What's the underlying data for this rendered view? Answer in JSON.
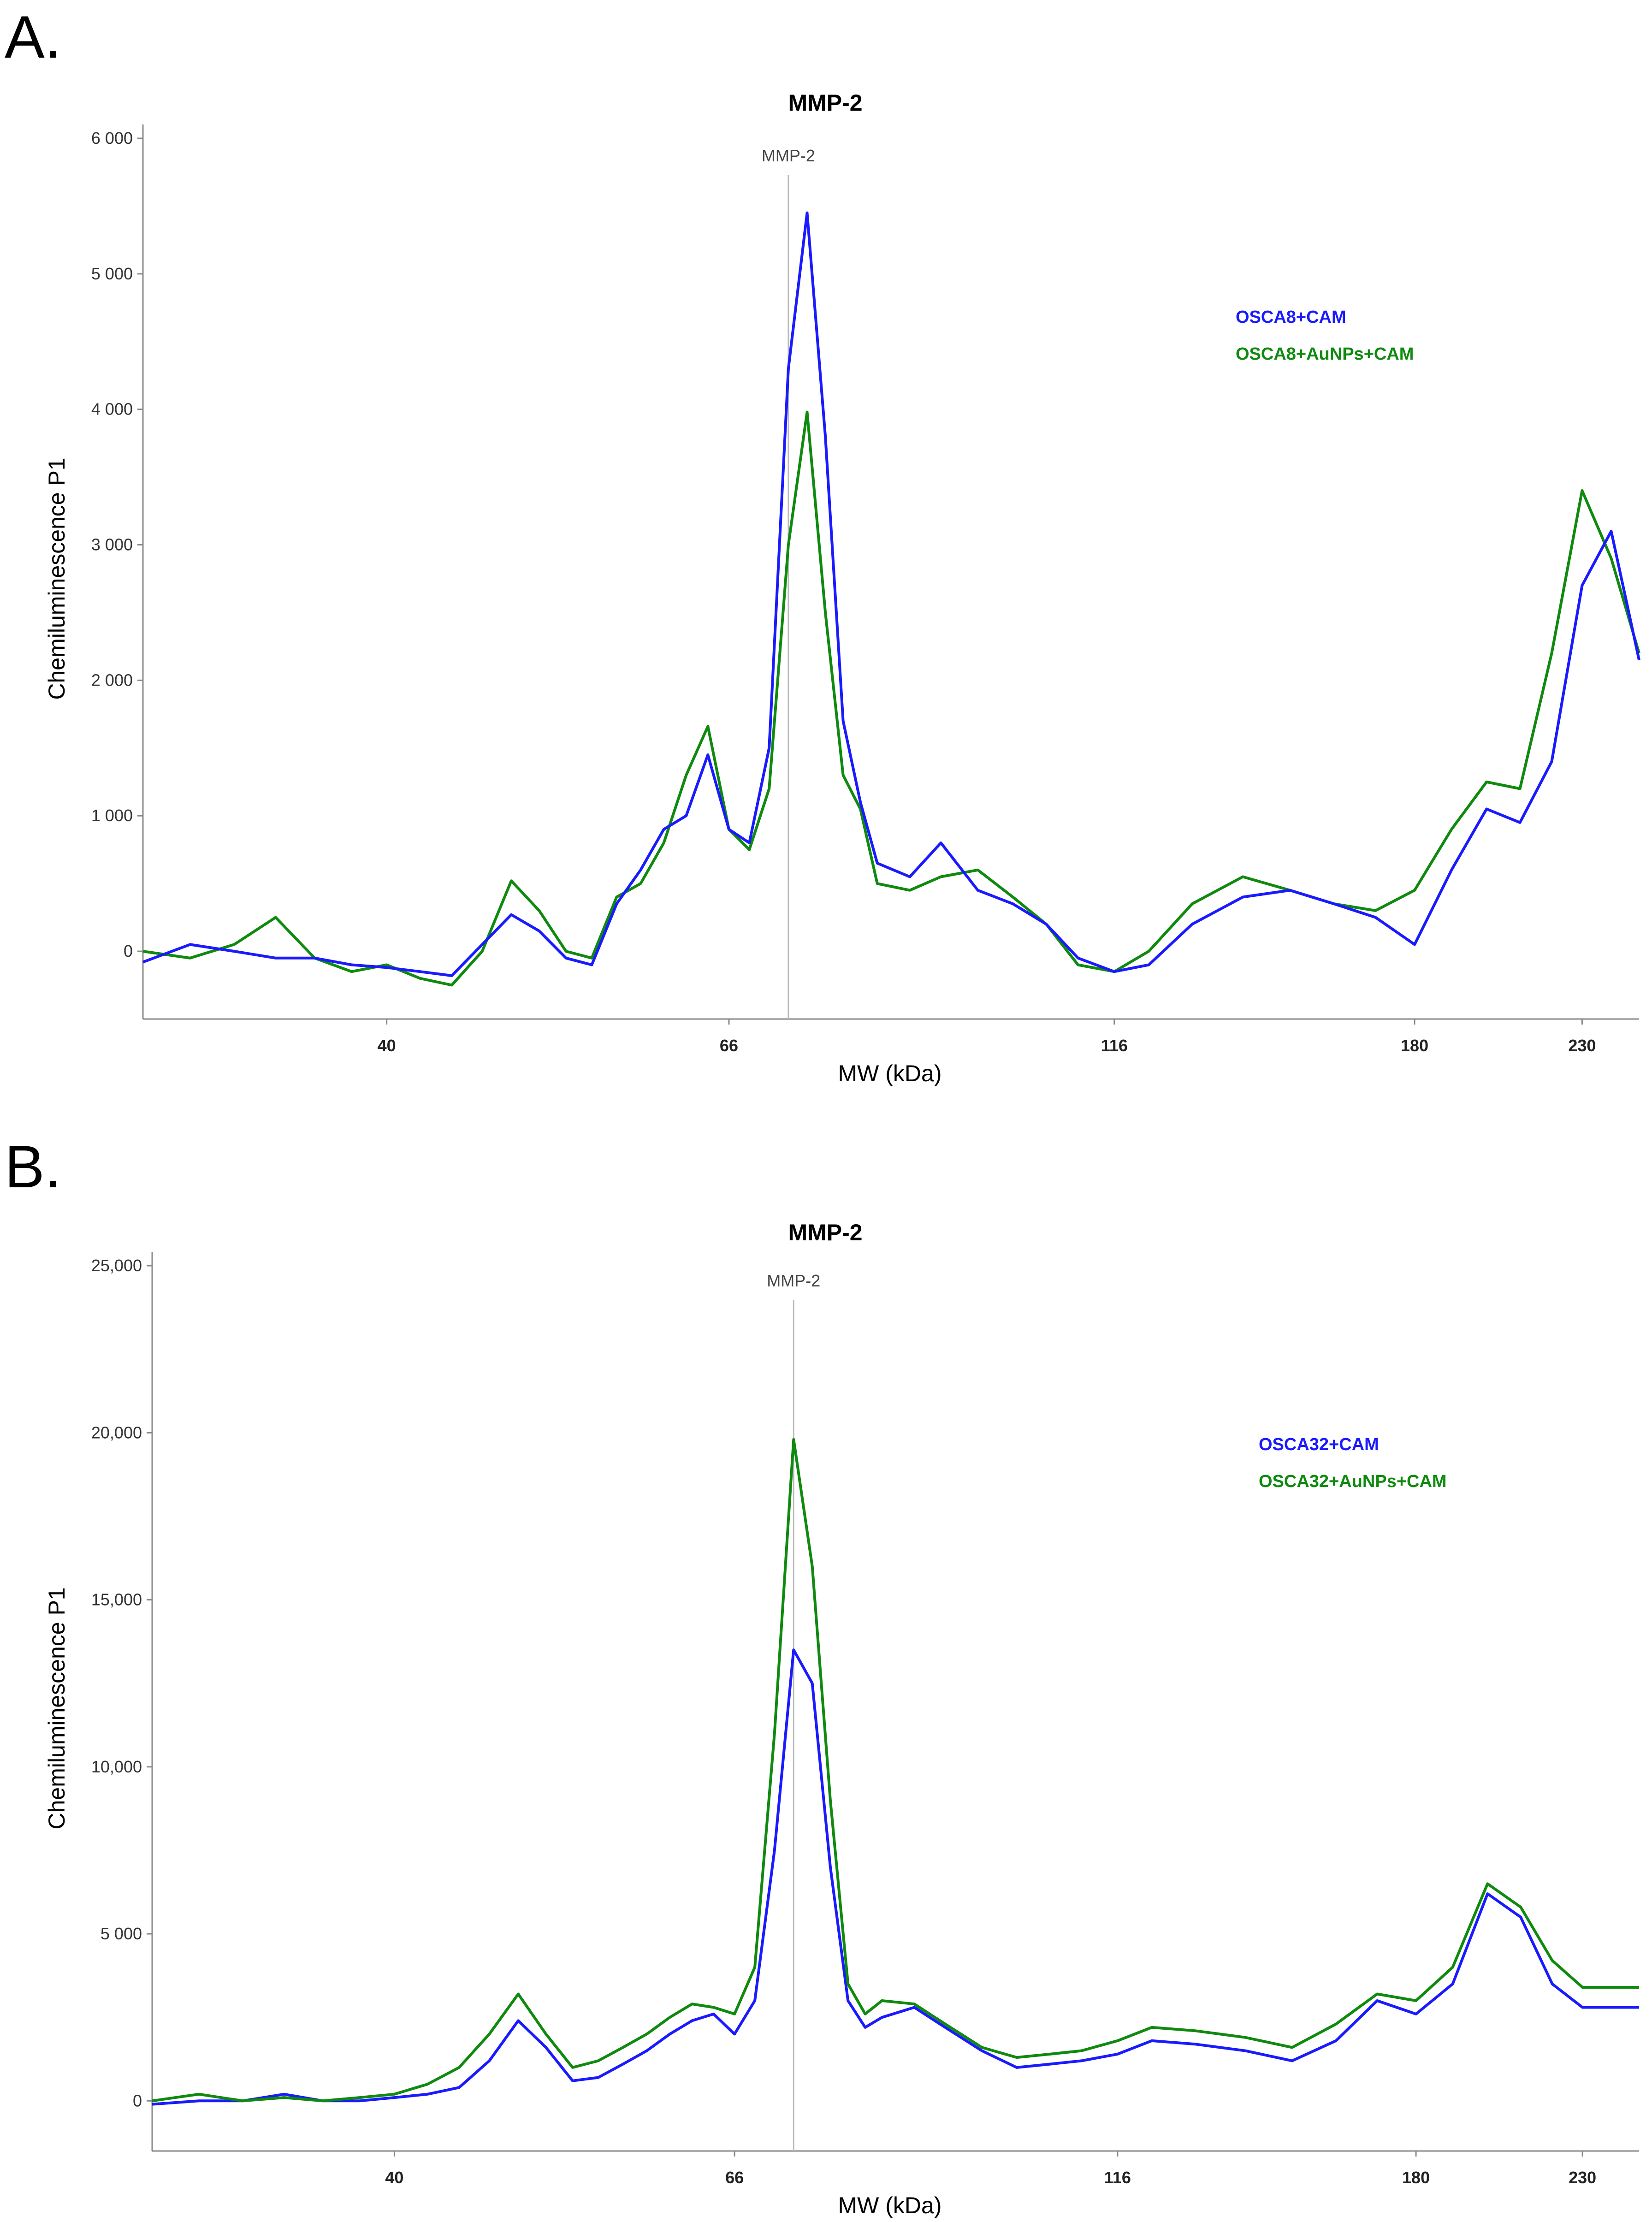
{
  "panels": [
    "A.",
    "B."
  ],
  "chart_data": [
    {
      "type": "line",
      "panel": "A.",
      "title": "MMP-2",
      "xlabel": "MW (kDa)",
      "ylabel": "Chemiluminescence P1",
      "xscale": "log",
      "xlim": [
        28,
        250
      ],
      "ylim": [
        -500,
        6000
      ],
      "x_ticks": [
        40,
        66,
        116,
        180,
        230
      ],
      "x_tick_labels": [
        "40",
        "66",
        "116",
        "180",
        "230"
      ],
      "y_ticks": [
        0,
        1000,
        2000,
        3000,
        4000,
        5000,
        6000
      ],
      "y_tick_labels": [
        "0",
        "1 000",
        "2 000",
        "3 000",
        "4 000",
        "5 000",
        "6 000"
      ],
      "marker": {
        "label": "MMP-2",
        "x": 72
      },
      "grid": false,
      "legend": "top-right",
      "series": [
        {
          "name": "OSCA8+CAM",
          "color": "#1a1aff",
          "x": [
            28,
            30,
            32,
            34,
            36,
            38,
            40,
            42,
            44,
            46,
            48,
            50,
            52,
            54,
            56,
            58,
            60,
            62,
            64,
            66,
            68,
            70,
            72,
            74,
            76,
            78,
            80,
            82,
            86,
            90,
            95,
            100,
            105,
            110,
            116,
            122,
            130,
            140,
            150,
            160,
            170,
            180,
            190,
            200,
            210,
            220,
            230,
            240,
            250
          ],
          "values": [
            -80,
            50,
            0,
            -50,
            -50,
            -100,
            -120,
            -150,
            -180,
            50,
            270,
            150,
            -50,
            -100,
            350,
            600,
            900,
            1000,
            1450,
            900,
            800,
            1500,
            4300,
            5450,
            3800,
            1700,
            1100,
            650,
            550,
            800,
            450,
            350,
            200,
            -50,
            -150,
            -100,
            200,
            400,
            450,
            350,
            250,
            50,
            600,
            1050,
            950,
            1400,
            2700,
            3100,
            2150
          ]
        },
        {
          "name": "OSCA8+AuNPs+CAM",
          "color": "#0f8a0f",
          "x": [
            28,
            30,
            32,
            34,
            36,
            38,
            40,
            42,
            44,
            46,
            48,
            50,
            52,
            54,
            56,
            58,
            60,
            62,
            64,
            66,
            68,
            70,
            72,
            74,
            76,
            78,
            80,
            82,
            86,
            90,
            95,
            100,
            105,
            110,
            116,
            122,
            130,
            140,
            150,
            160,
            170,
            180,
            190,
            200,
            210,
            220,
            230,
            240,
            250
          ],
          "values": [
            0,
            -50,
            50,
            250,
            -50,
            -150,
            -100,
            -200,
            -250,
            0,
            520,
            300,
            0,
            -50,
            400,
            500,
            800,
            1300,
            1660,
            900,
            750,
            1200,
            3000,
            3980,
            2500,
            1300,
            1050,
            500,
            450,
            550,
            600,
            400,
            200,
            -100,
            -150,
            0,
            350,
            550,
            450,
            350,
            300,
            450,
            900,
            1250,
            1200,
            2200,
            3400,
            2900,
            2200
          ]
        }
      ]
    },
    {
      "type": "line",
      "panel": "B.",
      "title": "MMP-2",
      "xlabel": "MW (kDa)",
      "ylabel": "Chemiluminescence P1",
      "xscale": "log",
      "xlim": [
        28,
        250
      ],
      "ylim": [
        -1500,
        25000
      ],
      "x_ticks": [
        40,
        66,
        116,
        180,
        230
      ],
      "x_tick_labels": [
        "40",
        "66",
        "116",
        "180",
        "230"
      ],
      "y_ticks": [
        0,
        5000,
        10000,
        15000,
        20000,
        25000
      ],
      "y_tick_labels": [
        "0",
        "5 000",
        "10,000",
        "15,000",
        "20,000",
        "25,000"
      ],
      "marker": {
        "label": "MMP-2",
        "x": 72
      },
      "grid": false,
      "legend": "top-right",
      "series": [
        {
          "name": "OSCA32+CAM",
          "color": "#1a1aff",
          "x": [
            28,
            30,
            32,
            34,
            36,
            38,
            40,
            42,
            44,
            46,
            48,
            50,
            52,
            54,
            56,
            58,
            60,
            62,
            64,
            66,
            68,
            70,
            72,
            74,
            76,
            78,
            80,
            82,
            86,
            90,
            95,
            100,
            105,
            110,
            116,
            122,
            130,
            140,
            150,
            160,
            170,
            180,
            190,
            200,
            210,
            220,
            230,
            240,
            250
          ],
          "values": [
            -100,
            0,
            0,
            200,
            0,
            0,
            100,
            200,
            400,
            1200,
            2400,
            1600,
            600,
            700,
            1100,
            1500,
            2000,
            2400,
            2600,
            2000,
            3000,
            7500,
            13500,
            12500,
            7000,
            3000,
            2200,
            2500,
            2800,
            2200,
            1500,
            1000,
            1100,
            1200,
            1400,
            1800,
            1700,
            1500,
            1200,
            1800,
            3000,
            2600,
            3500,
            6200,
            5500,
            3500,
            2800,
            2800,
            2800
          ]
        },
        {
          "name": "OSCA32+AuNPs+CAM",
          "color": "#0f8a0f",
          "x": [
            28,
            30,
            32,
            34,
            36,
            38,
            40,
            42,
            44,
            46,
            48,
            50,
            52,
            54,
            56,
            58,
            60,
            62,
            64,
            66,
            68,
            70,
            72,
            74,
            76,
            78,
            80,
            82,
            86,
            90,
            95,
            100,
            105,
            110,
            116,
            122,
            130,
            140,
            150,
            160,
            170,
            180,
            190,
            200,
            210,
            220,
            230,
            240,
            250
          ],
          "values": [
            0,
            200,
            0,
            100,
            0,
            100,
            200,
            500,
            1000,
            2000,
            3200,
            2000,
            1000,
            1200,
            1600,
            2000,
            2500,
            2900,
            2800,
            2600,
            4000,
            11000,
            19800,
            16000,
            9000,
            3500,
            2600,
            3000,
            2900,
            2300,
            1600,
            1300,
            1400,
            1500,
            1800,
            2200,
            2100,
            1900,
            1600,
            2300,
            3200,
            3000,
            4000,
            6500,
            5800,
            4200,
            3400,
            3400,
            3400
          ]
        }
      ]
    }
  ]
}
